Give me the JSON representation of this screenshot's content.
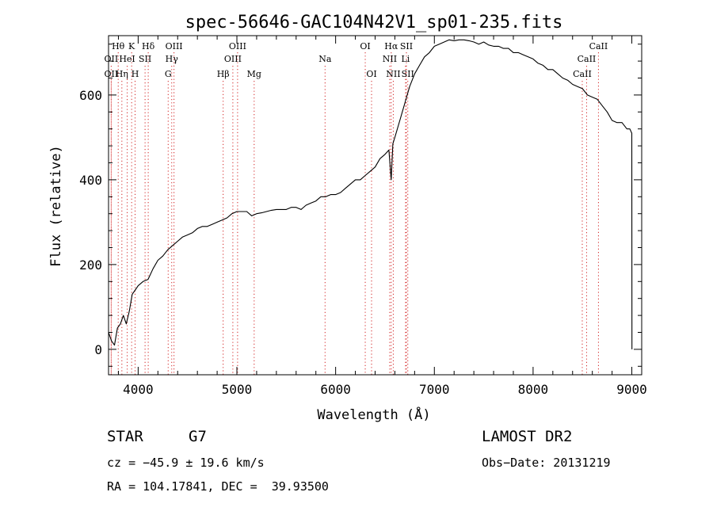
{
  "chart_data": {
    "type": "line",
    "title": "spec-56646-GAC104N42V1_sp01-235.fits",
    "xlabel": "Wavelength (Å)",
    "ylabel": "Flux (relative)",
    "xlim": [
      3700,
      9100
    ],
    "ylim": [
      -60,
      740
    ],
    "x_ticks": [
      4000,
      5000,
      6000,
      7000,
      8000,
      9000
    ],
    "x_tick_labels": [
      "4000",
      "5000",
      "6000",
      "7000",
      "8000",
      "9000"
    ],
    "y_ticks": [
      0,
      200,
      400,
      600
    ],
    "y_tick_labels": [
      "0",
      "200",
      "400",
      "600"
    ],
    "grid": false,
    "line_color": "#000000",
    "marker_color": "#d22222",
    "spectrum": {
      "x": [
        3700,
        3730,
        3760,
        3790,
        3820,
        3850,
        3880,
        3910,
        3940,
        3970,
        4000,
        4050,
        4100,
        4150,
        4200,
        4250,
        4300,
        4350,
        4400,
        4450,
        4500,
        4550,
        4600,
        4650,
        4700,
        4750,
        4800,
        4850,
        4900,
        4950,
        5000,
        5050,
        5100,
        5150,
        5200,
        5250,
        5300,
        5350,
        5400,
        5450,
        5500,
        5550,
        5600,
        5650,
        5700,
        5750,
        5800,
        5850,
        5900,
        5950,
        6000,
        6050,
        6100,
        6150,
        6200,
        6250,
        6300,
        6350,
        6400,
        6450,
        6500,
        6540,
        6563,
        6580,
        6600,
        6650,
        6700,
        6750,
        6800,
        6850,
        6900,
        6950,
        7000,
        7050,
        7100,
        7150,
        7200,
        7250,
        7300,
        7350,
        7400,
        7450,
        7500,
        7550,
        7600,
        7650,
        7700,
        7750,
        7800,
        7850,
        7900,
        7950,
        8000,
        8050,
        8100,
        8150,
        8200,
        8250,
        8300,
        8350,
        8400,
        8450,
        8500,
        8550,
        8600,
        8650,
        8700,
        8750,
        8800,
        8850,
        8900,
        8950,
        8980,
        9000,
        9001
      ],
      "y": [
        40,
        20,
        10,
        50,
        60,
        80,
        60,
        90,
        130,
        140,
        150,
        160,
        165,
        190,
        210,
        220,
        235,
        245,
        255,
        265,
        270,
        275,
        285,
        290,
        290,
        295,
        300,
        305,
        310,
        320,
        325,
        325,
        325,
        315,
        320,
        322,
        325,
        328,
        330,
        330,
        330,
        335,
        335,
        330,
        340,
        345,
        350,
        360,
        360,
        365,
        365,
        370,
        380,
        390,
        400,
        400,
        410,
        420,
        430,
        450,
        460,
        470,
        400,
        485,
        500,
        540,
        580,
        620,
        650,
        670,
        690,
        700,
        715,
        720,
        725,
        730,
        728,
        730,
        730,
        728,
        725,
        720,
        725,
        718,
        715,
        715,
        710,
        710,
        700,
        700,
        695,
        690,
        685,
        675,
        670,
        660,
        660,
        650,
        640,
        635,
        625,
        620,
        615,
        600,
        595,
        590,
        575,
        560,
        540,
        535,
        535,
        520,
        520,
        510,
        0
      ]
    },
    "lines": [
      {
        "label": "Hθ",
        "x": 3798,
        "row": 1
      },
      {
        "label": "K",
        "x": 3934,
        "row": 1
      },
      {
        "label": "Hδ",
        "x": 4102,
        "row": 1
      },
      {
        "label": "OIII",
        "x": 4363,
        "row": 1
      },
      {
        "label": "OIII",
        "x": 5007,
        "row": 1
      },
      {
        "label": "OI",
        "x": 6300,
        "row": 1
      },
      {
        "label": "Hα",
        "x": 6563,
        "row": 1
      },
      {
        "label": "SII",
        "x": 6717,
        "row": 1
      },
      {
        "label": "CaII",
        "x": 8662,
        "row": 1
      },
      {
        "label": "OII",
        "x": 3727,
        "row": 2
      },
      {
        "label": "HeI",
        "x": 3889,
        "row": 2
      },
      {
        "label": "SII",
        "x": 4070,
        "row": 2
      },
      {
        "label": "Hγ",
        "x": 4340,
        "row": 2
      },
      {
        "label": "OIII",
        "x": 4959,
        "row": 2
      },
      {
        "label": "Na",
        "x": 5893,
        "row": 2
      },
      {
        "label": "NII",
        "x": 6548,
        "row": 2
      },
      {
        "label": "Li",
        "x": 6708,
        "row": 2
      },
      {
        "label": "CaII",
        "x": 8542,
        "row": 2
      },
      {
        "label": "OII",
        "x": 3727,
        "row": 3
      },
      {
        "label": "Hη",
        "x": 3835,
        "row": 3
      },
      {
        "label": "H",
        "x": 3969,
        "row": 3
      },
      {
        "label": "G",
        "x": 4304,
        "row": 3
      },
      {
        "label": "Hβ",
        "x": 4861,
        "row": 3
      },
      {
        "label": "Mg",
        "x": 5175,
        "row": 3
      },
      {
        "label": "OI",
        "x": 6364,
        "row": 3
      },
      {
        "label": "NII",
        "x": 6584,
        "row": 3
      },
      {
        "label": "SII",
        "x": 6731,
        "row": 3
      },
      {
        "label": "CaII",
        "x": 8498,
        "row": 3
      }
    ]
  },
  "info": {
    "class_label": "STAR",
    "subclass": "G7",
    "survey": "LAMOST DR2",
    "cz": "cz = −45.9 ± 19.6 km/s",
    "obs_date": "Obs−Date: 20131219",
    "coords": "RA = 104.17841, DEC =  39.93500"
  }
}
